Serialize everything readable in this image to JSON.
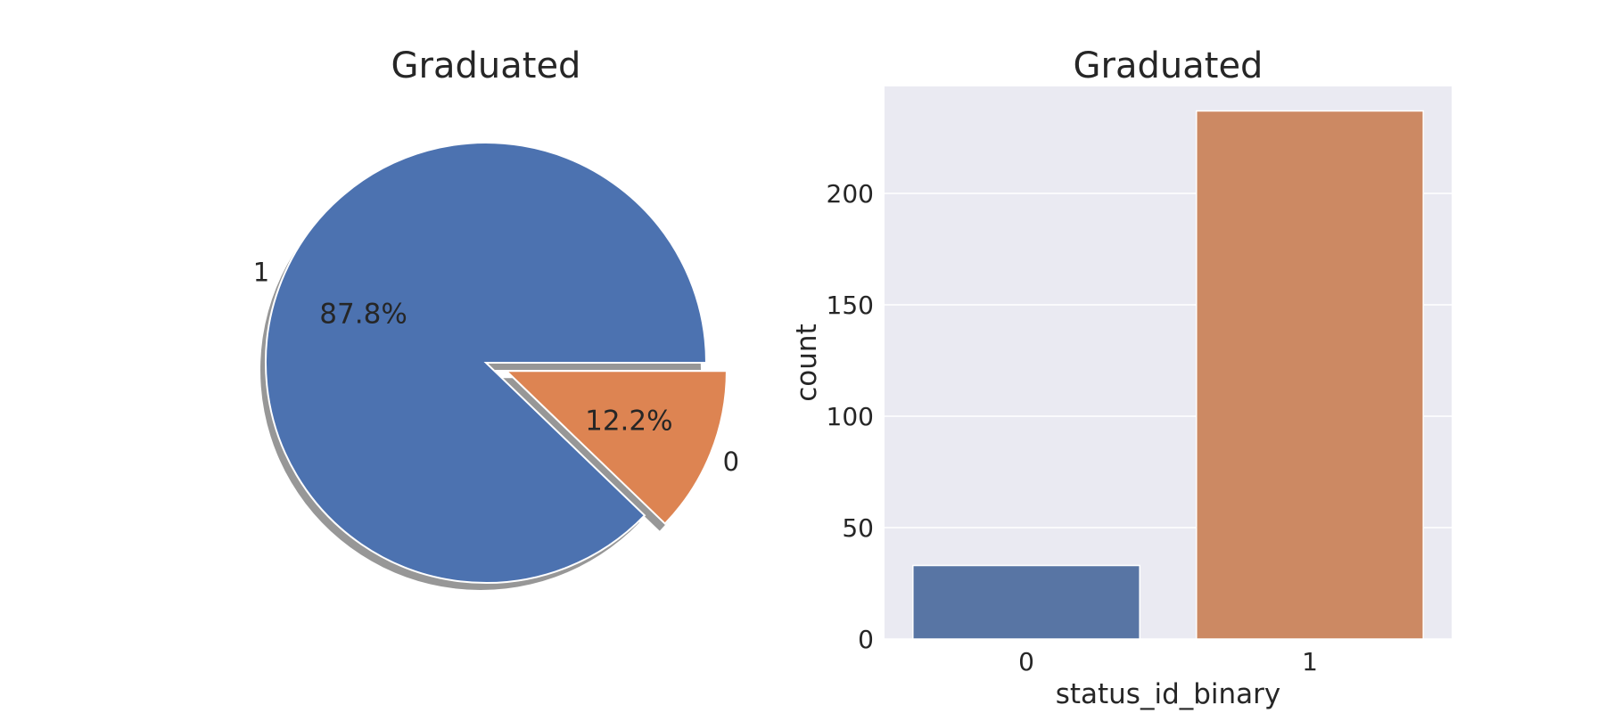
{
  "chart_data": [
    {
      "type": "pie",
      "title": "Graduated",
      "labels": [
        "1",
        "0"
      ],
      "values": [
        87.8,
        12.2
      ],
      "value_labels": [
        "87.8%",
        "12.2%"
      ],
      "explode": [
        0,
        0.1
      ],
      "shadow": true,
      "colors": [
        "#4c72b0",
        "#dd8452"
      ]
    },
    {
      "type": "bar",
      "title": "Graduated",
      "categories": [
        "0",
        "1"
      ],
      "values": [
        33,
        237
      ],
      "xlabel": "status_id_binary",
      "ylabel": "count",
      "ylim": [
        0,
        248
      ],
      "yticks": [
        0,
        50,
        100,
        150,
        200
      ],
      "grid": true,
      "background": "#eaeaf2",
      "colors": [
        "#5875a4",
        "#cc8963"
      ]
    }
  ]
}
